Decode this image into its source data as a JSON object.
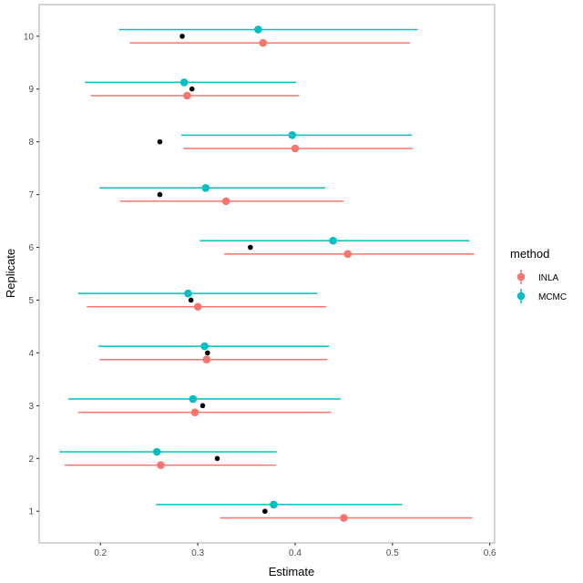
{
  "chart_data": {
    "type": "scatter",
    "subtype": "pointrange",
    "xlabel": "Estimate",
    "ylabel": "Replicate",
    "xlim": [
      0.137,
      0.605
    ],
    "ylim": [
      0.4,
      10.6
    ],
    "xticks": [
      "0.2",
      "0.3",
      "0.4",
      "0.5",
      "0.6"
    ],
    "xtick_values": [
      0.2,
      0.3,
      0.4,
      0.5,
      0.6
    ],
    "yticks": [
      "1",
      "2",
      "3",
      "4",
      "5",
      "6",
      "7",
      "8",
      "9",
      "10"
    ],
    "grid": false,
    "legend": {
      "title": "method",
      "placement": "right"
    },
    "series": [
      {
        "name": "INLA",
        "color": "#F8766D",
        "replicate": [
          1,
          2,
          3,
          4,
          5,
          6,
          7,
          8,
          9,
          10
        ],
        "estimate": [
          0.45,
          0.262,
          0.297,
          0.309,
          0.3,
          0.454,
          0.329,
          0.4,
          0.289,
          0.367
        ],
        "lower": [
          0.323,
          0.163,
          0.177,
          0.199,
          0.186,
          0.327,
          0.22,
          0.285,
          0.19,
          0.23
        ],
        "upper": [
          0.582,
          0.38,
          0.437,
          0.433,
          0.432,
          0.584,
          0.45,
          0.521,
          0.404,
          0.518
        ]
      },
      {
        "name": "MCMC",
        "color": "#00BFC4",
        "replicate": [
          1,
          2,
          3,
          4,
          5,
          6,
          7,
          8,
          9,
          10
        ],
        "estimate": [
          0.378,
          0.258,
          0.295,
          0.307,
          0.29,
          0.439,
          0.308,
          0.397,
          0.286,
          0.362
        ],
        "lower": [
          0.257,
          0.158,
          0.167,
          0.198,
          0.177,
          0.302,
          0.199,
          0.283,
          0.184,
          0.219
        ],
        "upper": [
          0.51,
          0.381,
          0.447,
          0.435,
          0.423,
          0.579,
          0.431,
          0.52,
          0.401,
          0.526
        ]
      }
    ],
    "true_values": {
      "color": "#000000",
      "replicate": [
        1,
        2,
        3,
        4,
        5,
        6,
        7,
        8,
        9,
        10
      ],
      "value": [
        0.369,
        0.32,
        0.305,
        0.31,
        0.293,
        0.354,
        0.261,
        0.261,
        0.294,
        0.284
      ]
    }
  }
}
